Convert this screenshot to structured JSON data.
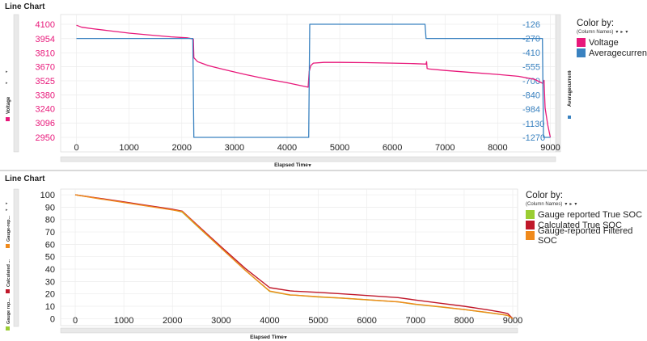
{
  "panels": [
    {
      "title": "Line Chart",
      "x_axis_label": "Elapsed Time",
      "y_left_label": "Voltage",
      "y_right_label": "Averagecurrent",
      "legend": {
        "title": "Color by:",
        "subtitle": "(Column Names)",
        "items": [
          {
            "label": "Voltage",
            "color": "#e8187a"
          },
          {
            "label": "Averagecurrent",
            "color": "#3a82c0"
          }
        ]
      }
    },
    {
      "title": "Line Chart",
      "x_axis_label": "Elapsed Time",
      "y_axis_labels": [
        "Gauge rep...",
        "Calculated ...",
        "Gauge-rep..."
      ],
      "legend": {
        "title": "Color by:",
        "subtitle": "(Column Names)",
        "items": [
          {
            "label": "Gauge reported True SOC",
            "color": "#9acd32"
          },
          {
            "label": "Calculated True SOC",
            "color": "#c0182a"
          },
          {
            "label": "Gauge-reported Filtered SOC",
            "color": "#f08a1c"
          }
        ]
      }
    }
  ],
  "chart_data": [
    {
      "type": "line",
      "title": "Line Chart",
      "xlabel": "Elapsed Time",
      "ylabel": "Voltage",
      "y2label": "Averagecurrent",
      "xlim": [
        -300,
        9100
      ],
      "xticks": [
        0,
        1000,
        2000,
        3000,
        4000,
        5000,
        6000,
        7000,
        8000,
        9000
      ],
      "ylim": [
        2950,
        4100
      ],
      "yticks": [
        2950,
        3096,
        3240,
        3380,
        3525,
        3670,
        3810,
        3954,
        4100
      ],
      "y2lim": [
        -1270,
        -126
      ],
      "y2ticks": [
        -126,
        -270,
        -410,
        -555,
        -700,
        -840,
        -984,
        -1130,
        -1270
      ],
      "series": [
        {
          "name": "Voltage",
          "axis": "left",
          "color": "#e8187a",
          "x": [
            0,
            100,
            300,
            600,
            1000,
            1400,
            1800,
            2100,
            2220,
            2230,
            2300,
            2500,
            2800,
            3200,
            3600,
            4000,
            4400,
            4420,
            4450,
            4500,
            4700,
            5000,
            5500,
            6000,
            6400,
            6640,
            6650,
            6660,
            6700,
            7000,
            7500,
            8000,
            8400,
            8700,
            8850,
            8880,
            8900,
            8950,
            9000
          ],
          "y": [
            4090,
            4070,
            4055,
            4035,
            4010,
            3990,
            3972,
            3962,
            3950,
            3760,
            3720,
            3680,
            3640,
            3590,
            3545,
            3505,
            3460,
            3620,
            3680,
            3705,
            3712,
            3712,
            3710,
            3705,
            3700,
            3695,
            3720,
            3650,
            3645,
            3630,
            3610,
            3590,
            3570,
            3540,
            3500,
            3530,
            3250,
            3080,
            2950
          ]
        },
        {
          "name": "Averagecurrent",
          "axis": "right",
          "color": "#3a82c0",
          "x": [
            0,
            2210,
            2230,
            4410,
            4430,
            6620,
            6640,
            8850,
            8870,
            9000
          ],
          "y": [
            -270,
            -270,
            -1270,
            -1270,
            -126,
            -126,
            -270,
            -270,
            -1270,
            -1270
          ]
        }
      ]
    },
    {
      "type": "line",
      "title": "Line Chart",
      "xlabel": "Elapsed Time",
      "xlim": [
        -300,
        9100
      ],
      "xticks": [
        0,
        1000,
        2000,
        3000,
        4000,
        5000,
        6000,
        7000,
        8000,
        9000
      ],
      "ylim": [
        -5,
        102
      ],
      "yticks": [
        0,
        10,
        20,
        30,
        40,
        50,
        60,
        70,
        80,
        90,
        100
      ],
      "series": [
        {
          "name": "Gauge reported True SOC",
          "color": "#9acd32",
          "x": [
            0,
            500,
            1000,
            1500,
            2000,
            2200,
            2500,
            3000,
            3500,
            4000,
            4420,
            4500,
            5000,
            5500,
            6000,
            6640,
            7000,
            7500,
            8000,
            8500,
            8800,
            8900,
            9000
          ],
          "y": [
            100,
            97,
            94,
            91,
            88,
            86,
            75,
            57,
            39,
            22,
            19,
            19,
            17.5,
            16.5,
            15.2,
            13.5,
            11.5,
            9.5,
            7.3,
            4.8,
            3.2,
            2.5,
            0
          ]
        },
        {
          "name": "Calculated True SOC",
          "color": "#c0182a",
          "x": [
            0,
            500,
            1000,
            1500,
            2000,
            2200,
            2500,
            3000,
            3500,
            4000,
            4420,
            4500,
            5000,
            5500,
            6000,
            6640,
            7000,
            7500,
            8000,
            8500,
            8800,
            8900,
            9000
          ],
          "y": [
            100,
            97.2,
            94.3,
            91.3,
            88.3,
            86.8,
            76,
            58,
            40.5,
            25,
            22.5,
            22.2,
            21.2,
            20,
            18.7,
            17,
            15,
            12.5,
            10,
            7,
            5,
            4,
            0
          ]
        },
        {
          "name": "Gauge-reported Filtered SOC",
          "color": "#f08a1c",
          "x": [
            0,
            500,
            1000,
            1500,
            2000,
            2200,
            2500,
            3000,
            3500,
            4000,
            4420,
            4500,
            5000,
            5500,
            6000,
            6640,
            7000,
            7500,
            8000,
            8500,
            8800,
            8900,
            9000
          ],
          "y": [
            100,
            96.8,
            93.8,
            90.8,
            87.8,
            86.5,
            75.3,
            57,
            39,
            22.3,
            19.2,
            19,
            17.7,
            16.6,
            15.3,
            13.6,
            11.7,
            9.6,
            7.4,
            4.9,
            3.3,
            2.6,
            0
          ]
        }
      ]
    }
  ]
}
